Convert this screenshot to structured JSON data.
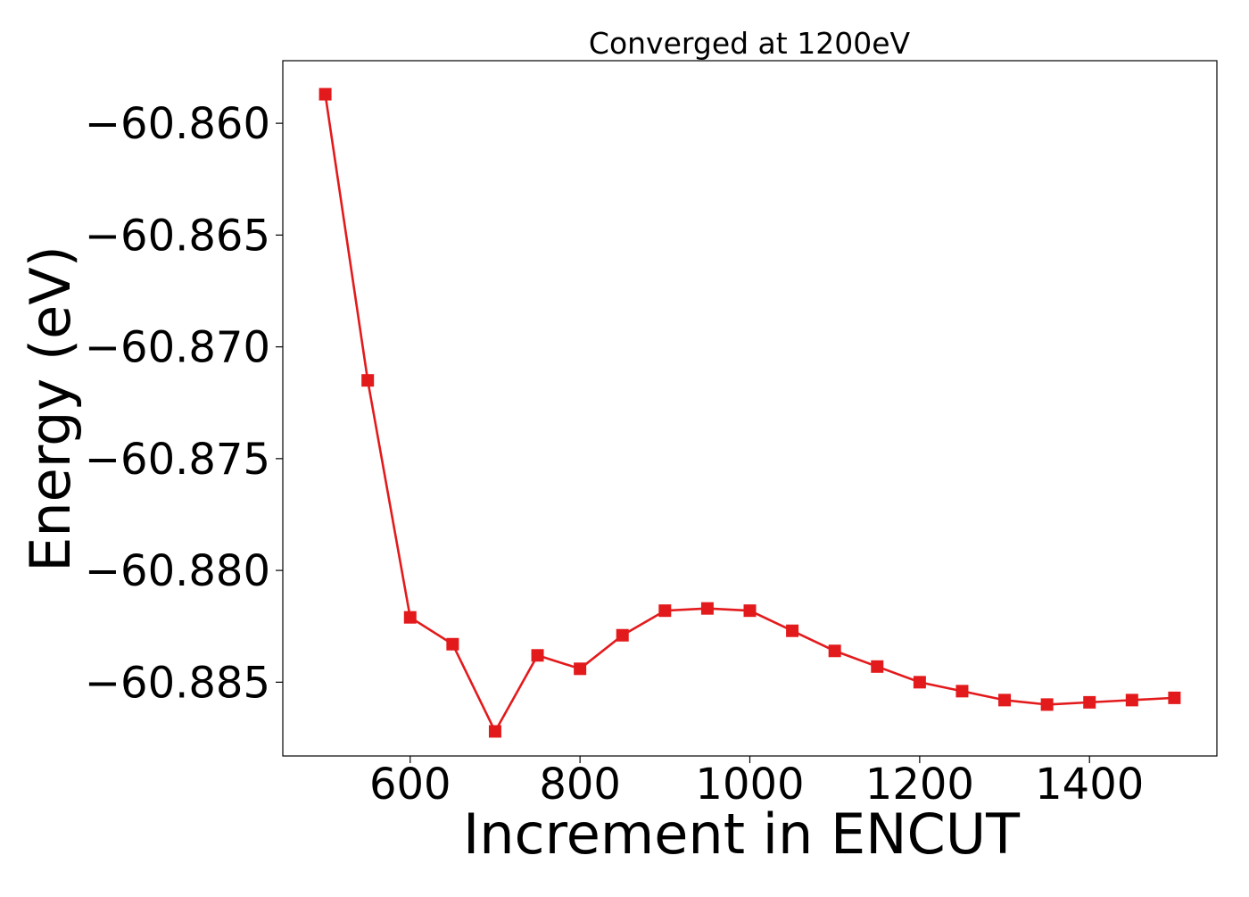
{
  "chart_data": {
    "type": "line",
    "title": "Converged at 1200eV",
    "xlabel": "Increment in ENCUT",
    "ylabel": "Energy (eV)",
    "xlim": [
      450,
      1550
    ],
    "ylim": [
      -60.8883,
      -60.8572
    ],
    "x_ticks": [
      600,
      800,
      1000,
      1200,
      1400
    ],
    "y_ticks": [
      -60.86,
      -60.865,
      -60.87,
      -60.875,
      -60.88,
      -60.885
    ],
    "y_tick_labels": [
      "−60.860",
      "−60.865",
      "−60.870",
      "−60.875",
      "−60.880",
      "−60.885"
    ],
    "grid": false,
    "series": [
      {
        "color": "#e31a1c",
        "marker": "square",
        "x": [
          500,
          550,
          600,
          650,
          700,
          750,
          800,
          850,
          900,
          950,
          1000,
          1050,
          1100,
          1150,
          1200,
          1250,
          1300,
          1350,
          1400,
          1450,
          1500
        ],
        "y": [
          -60.8587,
          -60.8715,
          -60.8821,
          -60.8833,
          -60.8872,
          -60.8838,
          -60.8844,
          -60.8829,
          -60.8818,
          -60.8817,
          -60.8818,
          -60.8827,
          -60.8836,
          -60.8843,
          -60.885,
          -60.8854,
          -60.8858,
          -60.886,
          -60.8859,
          -60.8858,
          -60.8857
        ]
      }
    ]
  }
}
